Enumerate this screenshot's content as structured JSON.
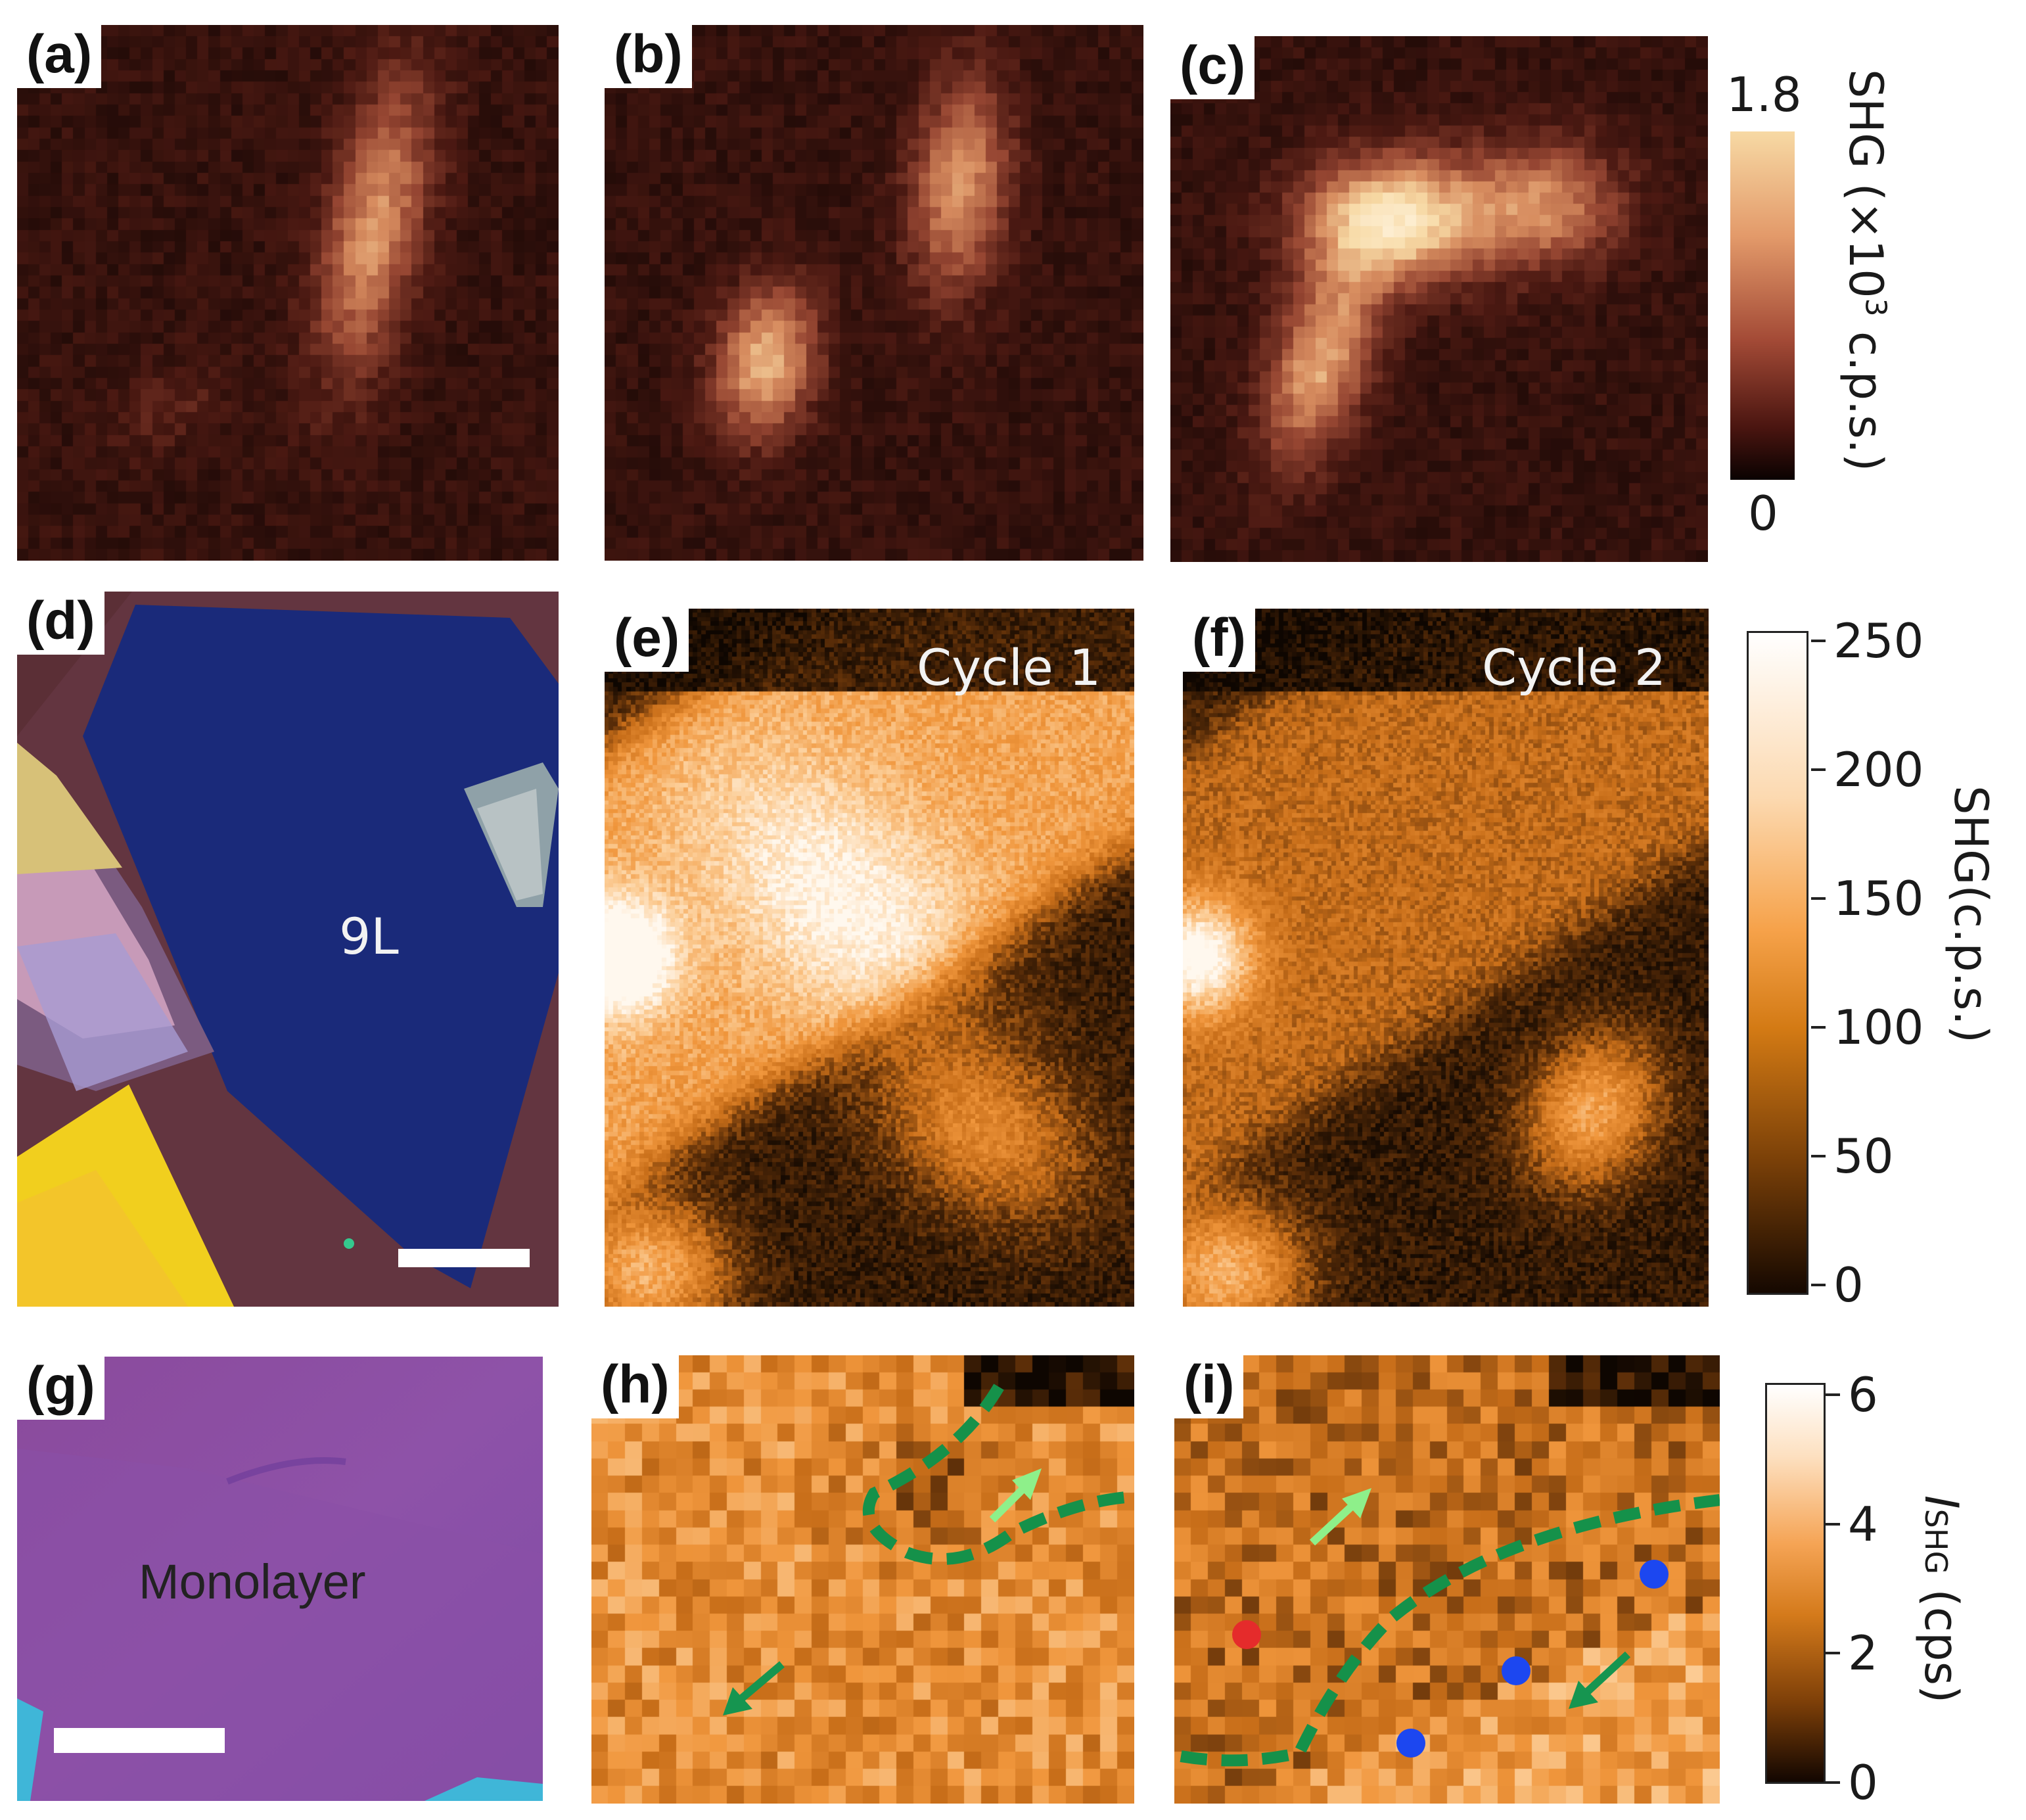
{
  "panels": {
    "a": {
      "label": "(a)"
    },
    "b": {
      "label": "(b)"
    },
    "c": {
      "label": "(c)"
    },
    "d": {
      "label": "(d)",
      "thickness": "9L"
    },
    "e": {
      "label": "(e)",
      "title": "Cycle 1"
    },
    "f": {
      "label": "(f)",
      "title": "Cycle 2"
    },
    "g": {
      "label": "(g)",
      "sample": "Monolayer"
    },
    "h": {
      "label": "(h)"
    },
    "i": {
      "label": "(i)"
    }
  },
  "colorbars": {
    "top": {
      "max": "1.8",
      "min": "0",
      "label_pre": "SHG (×10",
      "label_sup": "3",
      "label_post": " c.p.s.)"
    },
    "middle": {
      "ticks": [
        "250",
        "200",
        "150",
        "100",
        "50",
        "0"
      ],
      "label": "SHG(c.p.s.)"
    },
    "bottom": {
      "ticks": [
        "6",
        "4",
        "2",
        "0"
      ],
      "label_main": "I",
      "label_sub": "SHG",
      "label_unit": " (cps)"
    }
  },
  "colors": {
    "heat_dark": "#1e0806",
    "heat_light": "#f7d9a4",
    "orange_dark": "#140802",
    "orange_light": "#fff8ee",
    "dashed_green": "#15914a",
    "arrow_light": "#8ef08a",
    "arrow_dark": "#169550",
    "dot_red": "#e52b2b",
    "dot_blue": "#1c47f0",
    "optical_blue": "#1a2a7a",
    "optical_purple": "#8b4fa3"
  }
}
